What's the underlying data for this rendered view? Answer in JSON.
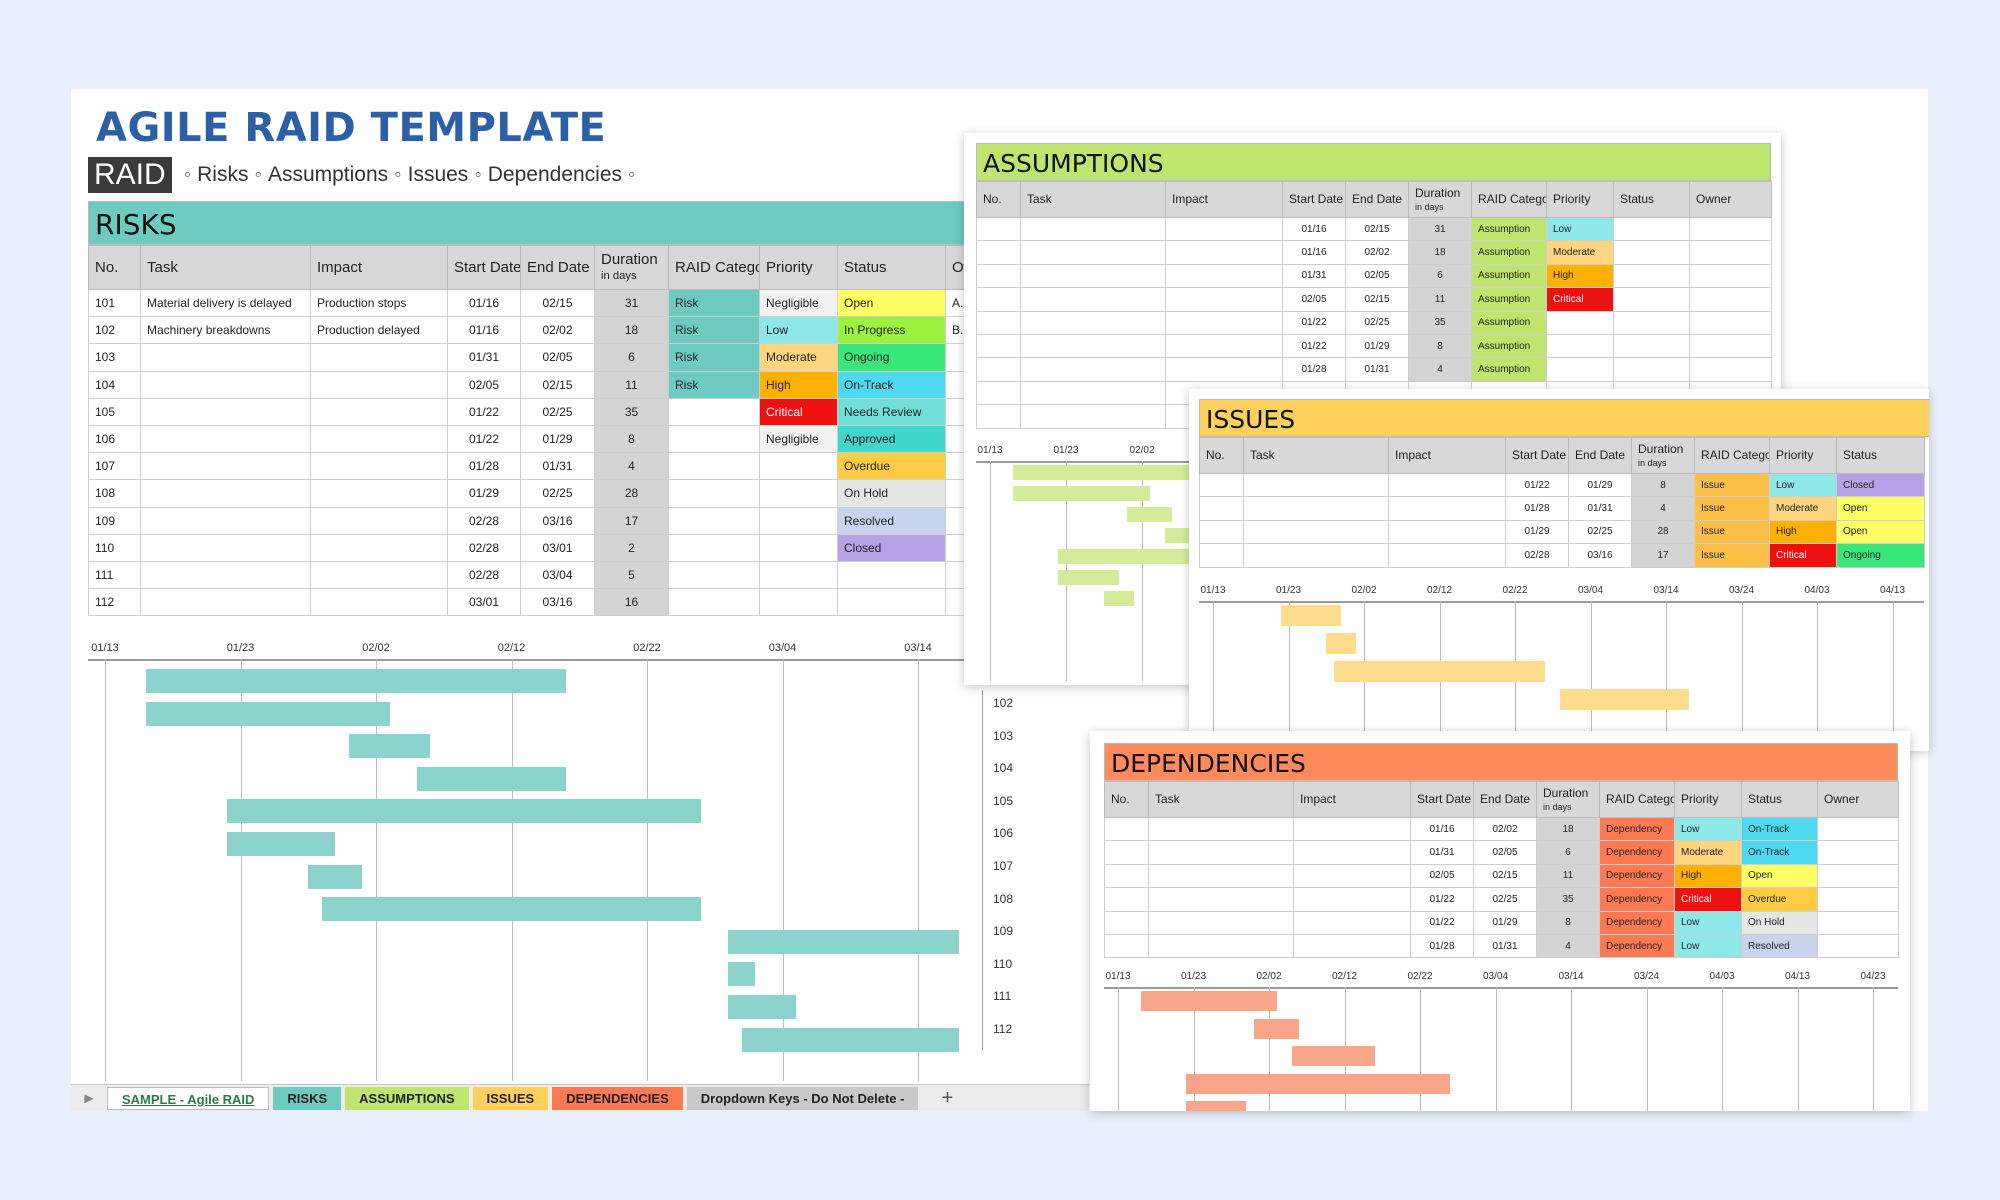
{
  "title": "AGILE RAID TEMPLATE",
  "subnav": {
    "badge": "RAID",
    "items": [
      "Risks",
      "Assumptions",
      "Issues",
      "Dependencies"
    ],
    "sep": "◦"
  },
  "colors": {
    "risks": "#6dcbc2",
    "assumptions": "#bee66e",
    "issues": "#ffd05c",
    "dependencies": "#ff8a5c",
    "risk_bar": "#8bd3cc",
    "assump_bar": "#d4ec9a",
    "issue_bar": "#ffdc8c",
    "dep_bar": "#f9a58a"
  },
  "risks": {
    "header": "RISKS",
    "columns": [
      "No.",
      "Task",
      "Impact",
      "Start Date",
      "End Date",
      "Duration",
      "RAID Category",
      "Priority",
      "Status",
      "Ow"
    ],
    "duration_sub": "in days",
    "rows": [
      {
        "no": "101",
        "task": "Material delivery is delayed",
        "impact": "Production stops",
        "start": "01/16",
        "end": "02/15",
        "dur": "31",
        "cat": "Risk",
        "priority": "Negligible",
        "status": "Open",
        "owner": "A. M"
      },
      {
        "no": "102",
        "task": "Machinery breakdowns",
        "impact": "Production delayed",
        "start": "01/16",
        "end": "02/02",
        "dur": "18",
        "cat": "Risk",
        "priority": "Low",
        "status": "In Progress",
        "owner": "B. F"
      },
      {
        "no": "103",
        "task": "",
        "impact": "",
        "start": "01/31",
        "end": "02/05",
        "dur": "6",
        "cat": "Risk",
        "priority": "Moderate",
        "status": "Ongoing",
        "owner": ""
      },
      {
        "no": "104",
        "task": "",
        "impact": "",
        "start": "02/05",
        "end": "02/15",
        "dur": "11",
        "cat": "Risk",
        "priority": "High",
        "status": "On-Track",
        "owner": ""
      },
      {
        "no": "105",
        "task": "",
        "impact": "",
        "start": "01/22",
        "end": "02/25",
        "dur": "35",
        "cat": "",
        "priority": "Critical",
        "status": "Needs Review",
        "owner": ""
      },
      {
        "no": "106",
        "task": "",
        "impact": "",
        "start": "01/22",
        "end": "01/29",
        "dur": "8",
        "cat": "",
        "priority": "Negligible",
        "status": "Approved",
        "owner": ""
      },
      {
        "no": "107",
        "task": "",
        "impact": "",
        "start": "01/28",
        "end": "01/31",
        "dur": "4",
        "cat": "",
        "priority": "",
        "status": "Overdue",
        "owner": ""
      },
      {
        "no": "108",
        "task": "",
        "impact": "",
        "start": "01/29",
        "end": "02/25",
        "dur": "28",
        "cat": "",
        "priority": "",
        "status": "On Hold",
        "owner": ""
      },
      {
        "no": "109",
        "task": "",
        "impact": "",
        "start": "02/28",
        "end": "03/16",
        "dur": "17",
        "cat": "",
        "priority": "",
        "status": "Resolved",
        "owner": ""
      },
      {
        "no": "110",
        "task": "",
        "impact": "",
        "start": "02/28",
        "end": "03/01",
        "dur": "2",
        "cat": "",
        "priority": "",
        "status": "Closed",
        "owner": ""
      },
      {
        "no": "111",
        "task": "",
        "impact": "",
        "start": "02/28",
        "end": "03/04",
        "dur": "5",
        "cat": "",
        "priority": "",
        "status": "",
        "owner": ""
      },
      {
        "no": "112",
        "task": "",
        "impact": "",
        "start": "03/01",
        "end": "03/16",
        "dur": "16",
        "cat": "",
        "priority": "",
        "status": "",
        "owner": ""
      }
    ],
    "gantt_ticks": [
      "01/13",
      "01/23",
      "02/02",
      "02/12",
      "02/22",
      "03/04",
      "03/14"
    ],
    "gantt_row_labels": [
      "102",
      "103",
      "104",
      "105",
      "106",
      "107",
      "108",
      "109",
      "110",
      "111",
      "112"
    ]
  },
  "assumptions": {
    "header": "ASSUMPTIONS",
    "columns": [
      "No.",
      "Task",
      "Impact",
      "Start Date",
      "End Date",
      "Duration",
      "RAID Category",
      "Priority",
      "Status",
      "Owner"
    ],
    "rows": [
      {
        "start": "01/16",
        "end": "02/15",
        "dur": "31",
        "cat": "Assumption",
        "priority": "Low"
      },
      {
        "start": "01/16",
        "end": "02/02",
        "dur": "18",
        "cat": "Assumption",
        "priority": "Moderate"
      },
      {
        "start": "01/31",
        "end": "02/05",
        "dur": "6",
        "cat": "Assumption",
        "priority": "High"
      },
      {
        "start": "02/05",
        "end": "02/15",
        "dur": "11",
        "cat": "Assumption",
        "priority": "Critical"
      },
      {
        "start": "01/22",
        "end": "02/25",
        "dur": "35",
        "cat": "Assumption",
        "priority": ""
      },
      {
        "start": "01/22",
        "end": "01/29",
        "dur": "8",
        "cat": "Assumption",
        "priority": ""
      },
      {
        "start": "01/28",
        "end": "01/31",
        "dur": "4",
        "cat": "Assumption",
        "priority": ""
      }
    ],
    "gantt_ticks": [
      "01/13",
      "01/23",
      "02/02"
    ]
  },
  "issues": {
    "header": "ISSUES",
    "columns": [
      "No.",
      "Task",
      "Impact",
      "Start Date",
      "End Date",
      "Duration",
      "RAID Category",
      "Priority",
      "Status"
    ],
    "rows": [
      {
        "start": "01/22",
        "end": "01/29",
        "dur": "8",
        "cat": "Issue",
        "priority": "Low",
        "status": "Closed"
      },
      {
        "start": "01/28",
        "end": "01/31",
        "dur": "4",
        "cat": "Issue",
        "priority": "Moderate",
        "status": "Open"
      },
      {
        "start": "01/29",
        "end": "02/25",
        "dur": "28",
        "cat": "Issue",
        "priority": "High",
        "status": "Open"
      },
      {
        "start": "02/28",
        "end": "03/16",
        "dur": "17",
        "cat": "Issue",
        "priority": "Critical",
        "status": "Ongoing"
      }
    ],
    "gantt_ticks": [
      "01/13",
      "01/23",
      "02/02",
      "02/12",
      "02/22",
      "03/04",
      "03/14",
      "03/24",
      "04/03",
      "04/13"
    ]
  },
  "dependencies": {
    "header": "DEPENDENCIES",
    "columns": [
      "No.",
      "Task",
      "Impact",
      "Start Date",
      "End Date",
      "Duration",
      "RAID Category",
      "Priority",
      "Status",
      "Owner"
    ],
    "rows": [
      {
        "start": "01/16",
        "end": "02/02",
        "dur": "18",
        "cat": "Dependency",
        "priority": "Low",
        "status": "On-Track"
      },
      {
        "start": "01/31",
        "end": "02/05",
        "dur": "6",
        "cat": "Dependency",
        "priority": "Moderate",
        "status": "On-Track"
      },
      {
        "start": "02/05",
        "end": "02/15",
        "dur": "11",
        "cat": "Dependency",
        "priority": "High",
        "status": "Open"
      },
      {
        "start": "01/22",
        "end": "02/25",
        "dur": "35",
        "cat": "Dependency",
        "priority": "Critical",
        "status": "Overdue"
      },
      {
        "start": "01/22",
        "end": "01/29",
        "dur": "8",
        "cat": "Dependency",
        "priority": "Low",
        "status": "On Hold"
      },
      {
        "start": "01/28",
        "end": "01/31",
        "dur": "4",
        "cat": "Dependency",
        "priority": "Low",
        "status": "Resolved"
      }
    ],
    "gantt_ticks": [
      "01/13",
      "01/23",
      "02/02",
      "02/12",
      "02/22",
      "03/04",
      "03/14",
      "03/24",
      "04/03",
      "04/13",
      "04/23"
    ]
  },
  "priority_colors": {
    "Negligible": "#f2f2f2",
    "Low": "#8fe8e8",
    "Moderate": "#ffd680",
    "High": "#ffb000",
    "Critical": "#ee1111"
  },
  "status_colors": {
    "Open": "#ffff66",
    "In Progress": "#9cf23c",
    "Ongoing": "#38e87a",
    "On-Track": "#4fd9f0",
    "Needs Review": "#6ee0d8",
    "Approved": "#3fd6cc",
    "Overdue": "#ffcc44",
    "On Hold": "#e6e6e6",
    "Resolved": "#c8d4ee",
    "Closed": "#b7a2e8"
  },
  "tabs": [
    {
      "label": "SAMPLE - Agile RAID",
      "color": "#e8e8e8",
      "active": true
    },
    {
      "label": "RISKS",
      "color": "#6dcbc2",
      "active": false
    },
    {
      "label": "ASSUMPTIONS",
      "color": "#bee66e",
      "active": false
    },
    {
      "label": "ISSUES",
      "color": "#ffd05c",
      "active": false
    },
    {
      "label": "DEPENDENCIES",
      "color": "#ff7a52",
      "active": false
    },
    {
      "label": "Dropdown Keys - Do Not Delete -",
      "color": "#c9c9c9",
      "active": false
    }
  ],
  "tab_add": "+",
  "tab_scroll": "▶"
}
